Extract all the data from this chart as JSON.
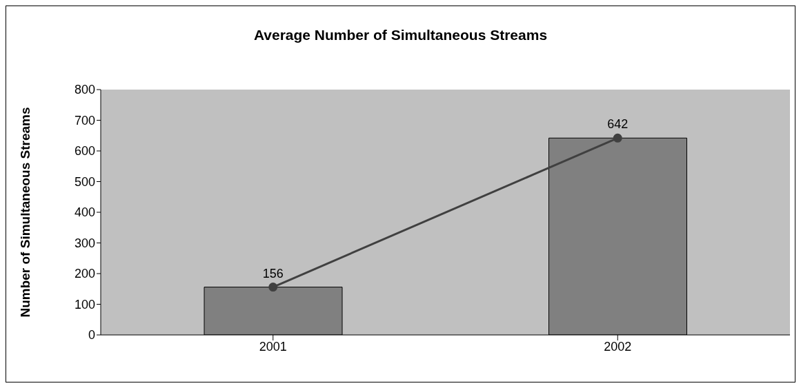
{
  "chart_data": {
    "type": "bar",
    "title": "Average Number of Simultaneous Streams",
    "ylabel": "Number of Simultaneous Streams",
    "categories": [
      "2001",
      "2002"
    ],
    "series": [
      {
        "color": "#808080",
        "values": [
          156,
          642
        ]
      },
      {
        "type": "line",
        "color": "#404040",
        "values": [
          156,
          642
        ],
        "value_labels": [
          "156",
          "642"
        ],
        "marker": "circle"
      }
    ],
    "ylim": [
      0,
      800
    ],
    "yticks": [
      0,
      100,
      200,
      300,
      400,
      500,
      600,
      700,
      800
    ],
    "legend": false
  }
}
